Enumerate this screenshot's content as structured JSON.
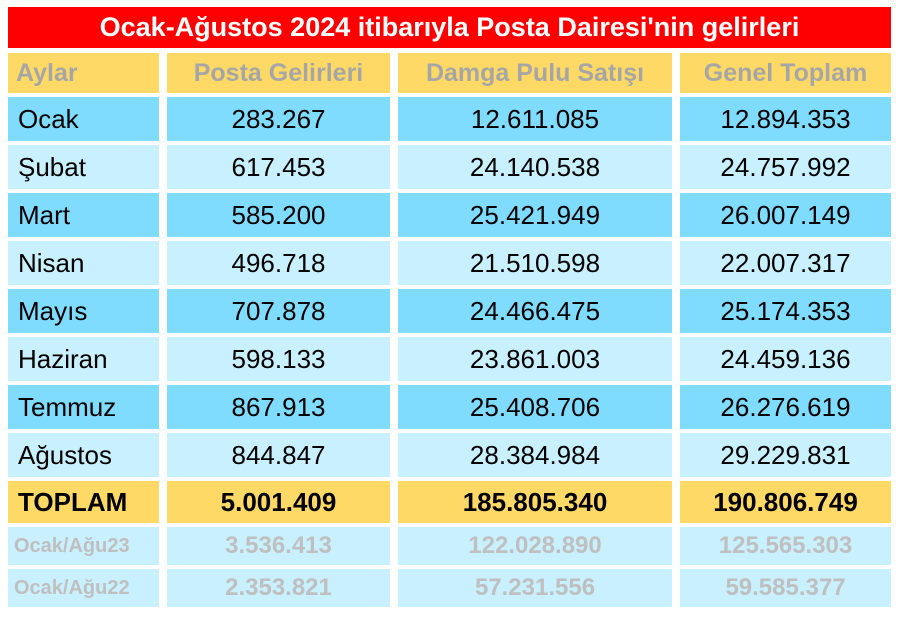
{
  "title": "Ocak-Ağustos 2024 itibarıyla Posta Dairesi'nin gelirleri",
  "headers": [
    "Aylar",
    "Posta Gelirleri",
    "Damga Pulu Satışı",
    "Genel Toplam"
  ],
  "rows": [
    [
      "Ocak",
      "283.267",
      "12.611.085",
      "12.894.353"
    ],
    [
      "Şubat",
      "617.453",
      "24.140.538",
      "24.757.992"
    ],
    [
      "Mart",
      "585.200",
      "25.421.949",
      "26.007.149"
    ],
    [
      "Nisan",
      "496.718",
      "21.510.598",
      "22.007.317"
    ],
    [
      "Mayıs",
      "707.878",
      "24.466.475",
      "25.174.353"
    ],
    [
      "Haziran",
      "598.133",
      "23.861.003",
      "24.459.136"
    ],
    [
      "Temmuz",
      "867.913",
      "25.408.706",
      "26.276.619"
    ],
    [
      "Ağustos",
      "844.847",
      "28.384.984",
      "29.229.831"
    ]
  ],
  "total": [
    "TOPLAM",
    "5.001.409",
    "185.805.340",
    "190.806.749"
  ],
  "previous": [
    [
      "Ocak/Ağu23",
      "3.536.413",
      "122.028.890",
      "125.565.303"
    ],
    [
      "Ocak/Ağu22",
      "2.353.821",
      "57.231.556",
      "59.585.377"
    ]
  ],
  "colors": {
    "title_bg": "#ff0000",
    "header_bg": "#ffd966",
    "row_dark": "#7fdcff",
    "row_light": "#c9f0ff",
    "muted_text": "#bfbfbf"
  }
}
